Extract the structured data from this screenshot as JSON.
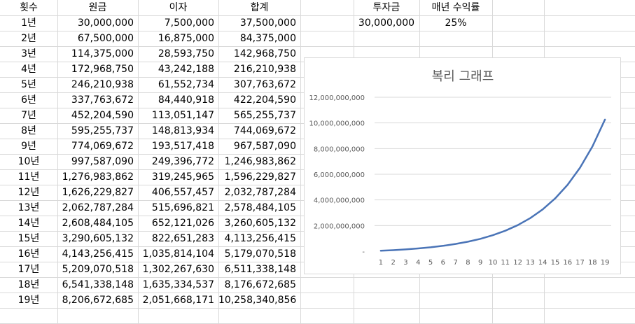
{
  "headers": {
    "count": "횟수",
    "principal": "원금",
    "interest": "이자",
    "total": "합계",
    "investment": "투자금",
    "annual_return": "매년 수익률"
  },
  "investment_value": "30,000,000",
  "annual_return_value": "25%",
  "rows": [
    {
      "count": "1년",
      "principal": "30,000,000",
      "interest": "7,500,000",
      "total": "37,500,000"
    },
    {
      "count": "2년",
      "principal": "67,500,000",
      "interest": "16,875,000",
      "total": "84,375,000"
    },
    {
      "count": "3년",
      "principal": "114,375,000",
      "interest": "28,593,750",
      "total": "142,968,750"
    },
    {
      "count": "4년",
      "principal": "172,968,750",
      "interest": "43,242,188",
      "total": "216,210,938"
    },
    {
      "count": "5년",
      "principal": "246,210,938",
      "interest": "61,552,734",
      "total": "307,763,672"
    },
    {
      "count": "6년",
      "principal": "337,763,672",
      "interest": "84,440,918",
      "total": "422,204,590"
    },
    {
      "count": "7년",
      "principal": "452,204,590",
      "interest": "113,051,147",
      "total": "565,255,737"
    },
    {
      "count": "8년",
      "principal": "595,255,737",
      "interest": "148,813,934",
      "total": "744,069,672"
    },
    {
      "count": "9년",
      "principal": "774,069,672",
      "interest": "193,517,418",
      "total": "967,587,090"
    },
    {
      "count": "10년",
      "principal": "997,587,090",
      "interest": "249,396,772",
      "total": "1,246,983,862"
    },
    {
      "count": "11년",
      "principal": "1,276,983,862",
      "interest": "319,245,965",
      "total": "1,596,229,827"
    },
    {
      "count": "12년",
      "principal": "1,626,229,827",
      "interest": "406,557,457",
      "total": "2,032,787,284"
    },
    {
      "count": "13년",
      "principal": "2,062,787,284",
      "interest": "515,696,821",
      "total": "2,578,484,105"
    },
    {
      "count": "14년",
      "principal": "2,608,484,105",
      "interest": "652,121,026",
      "total": "3,260,605,132"
    },
    {
      "count": "15년",
      "principal": "3,290,605,132",
      "interest": "822,651,283",
      "total": "4,113,256,415"
    },
    {
      "count": "16년",
      "principal": "4,143,256,415",
      "interest": "1,035,814,104",
      "total": "5,179,070,518"
    },
    {
      "count": "17년",
      "principal": "5,209,070,518",
      "interest": "1,302,267,630",
      "total": "6,511,338,148"
    },
    {
      "count": "18년",
      "principal": "6,541,338,148",
      "interest": "1,635,334,537",
      "total": "8,176,672,685"
    },
    {
      "count": "19년",
      "principal": "8,206,672,685",
      "interest": "2,051,668,171",
      "total": "10,258,340,856"
    }
  ],
  "colors": {
    "series_line": "#4a74b7",
    "gridline": "#d9d9d9",
    "axis_text": "#595959"
  },
  "chart_data": {
    "type": "line",
    "title": "복리 그래프",
    "x": [
      1,
      2,
      3,
      4,
      5,
      6,
      7,
      8,
      9,
      10,
      11,
      12,
      13,
      14,
      15,
      16,
      17,
      18,
      19
    ],
    "ylim": [
      0,
      12000000000
    ],
    "ytick_labels": [
      "-",
      "2,000,000,000",
      "4,000,000,000",
      "6,000,000,000",
      "8,000,000,000",
      "10,000,000,000",
      "12,000,000,000"
    ],
    "grid": true,
    "series": [
      {
        "values": [
          37500000,
          84375000,
          142968750,
          216210938,
          307763672,
          422204590,
          565255737,
          744069672,
          967587090,
          1246983862,
          1596229827,
          2032787284,
          2578484105,
          3260605132,
          4113256415,
          5179070518,
          6511338148,
          8176672685,
          10258340856
        ]
      }
    ]
  }
}
